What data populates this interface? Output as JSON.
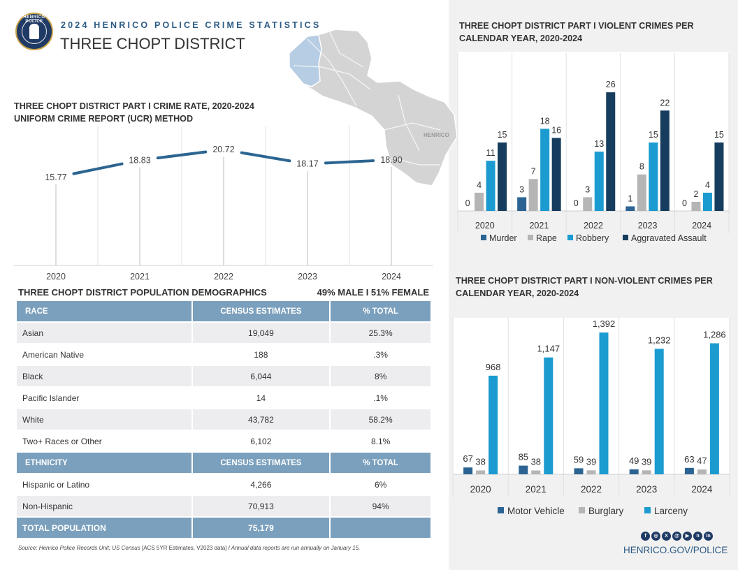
{
  "header": {
    "kicker": "2024 HENRICO POLICE CRIME STATISTICS",
    "title": "THREE CHOPT DISTRICT",
    "seal_text": "HENRICO POLICE"
  },
  "colors": {
    "navy": "#1f3a64",
    "murder": "#2b6493",
    "rape": "#b5b5b5",
    "robbery": "#1b9bd0",
    "aggravated": "#163c5e",
    "line": "#2c6591",
    "table_header": "#7ba0bd"
  },
  "crime_rate": {
    "title_line1": "THREE CHOPT DISTRICT PART I CRIME RATE, 2020-2024",
    "title_line2": "UNIFORM CRIME REPORT (UCR) METHOD"
  },
  "violent": {
    "title_line1": "THREE CHOPT DISTRICT PART I VIOLENT CRIMES PER",
    "title_line2": "CALENDAR YEAR, 2020-2024"
  },
  "nonviolent": {
    "title_line1": "THREE CHOPT DISTRICT PART I NON-VIOLENT CRIMES PER",
    "title_line2": "CALENDAR YEAR, 2020-2024"
  },
  "chart_data": [
    {
      "type": "line",
      "title": "THREE CHOPT DISTRICT PART I CRIME RATE, 2020-2024",
      "subtitle": "UNIFORM CRIME REPORT (UCR) METHOD",
      "categories": [
        "2020",
        "2021",
        "2022",
        "2023",
        "2024"
      ],
      "values": [
        15.77,
        18.83,
        20.72,
        18.17,
        18.9
      ],
      "labels": [
        "15.77",
        "18.83",
        "20.72",
        "18.17",
        "18.90"
      ],
      "ylim": [
        0,
        30
      ]
    },
    {
      "type": "bar",
      "title": "THREE CHOPT DISTRICT PART I VIOLENT CRIMES PER CALENDAR YEAR, 2020-2024",
      "categories": [
        "2020",
        "2021",
        "2022",
        "2023",
        "2024"
      ],
      "series": [
        {
          "name": "Murder",
          "values": [
            0,
            3,
            0,
            1,
            0
          ]
        },
        {
          "name": "Rape",
          "values": [
            4,
            7,
            3,
            8,
            2
          ]
        },
        {
          "name": "Robbery",
          "values": [
            11,
            18,
            13,
            15,
            4
          ]
        },
        {
          "name": "Aggravated Assault",
          "values": [
            15,
            16,
            26,
            22,
            15
          ]
        }
      ],
      "ylim": [
        0,
        30
      ],
      "legend": "bottom"
    },
    {
      "type": "bar",
      "title": "THREE CHOPT DISTRICT PART I NON-VIOLENT CRIMES PER CALENDAR YEAR, 2020-2024",
      "categories": [
        "2020",
        "2021",
        "2022",
        "2023",
        "2024"
      ],
      "series": [
        {
          "name": "Motor Vehicle",
          "values": [
            67,
            85,
            59,
            49,
            63
          ]
        },
        {
          "name": "Burglary",
          "values": [
            38,
            38,
            39,
            39,
            47
          ]
        },
        {
          "name": "Larceny",
          "values": [
            968,
            1147,
            1392,
            1232,
            1286
          ]
        }
      ],
      "labels": {
        "Motor Vehicle": [
          "67",
          "85",
          "59",
          "49",
          "63"
        ],
        "Burglary": [
          "38",
          "38",
          "39",
          "39",
          "47"
        ],
        "Larceny": [
          "968",
          "1,147",
          "1,392",
          "1,232",
          "1,286"
        ]
      },
      "ylim": [
        0,
        1500
      ],
      "legend": "bottom"
    }
  ],
  "demographics": {
    "title": "THREE CHOPT DISTRICT POPULATION DEMOGRAPHICS",
    "gender": "49% MALE  I  51% FEMALE",
    "race_header": {
      "c1": "RACE",
      "c2": "CENSUS ESTIMATES",
      "c3": "% TOTAL"
    },
    "race_rows": [
      {
        "label": "Asian",
        "estimate": "19,049",
        "pct": "25.3%"
      },
      {
        "label": "American Native",
        "estimate": "188",
        "pct": ".3%"
      },
      {
        "label": "Black",
        "estimate": "6,044",
        "pct": "8%"
      },
      {
        "label": "Pacific Islander",
        "estimate": "14",
        "pct": ".1%"
      },
      {
        "label": "White",
        "estimate": "43,782",
        "pct": "58.2%"
      },
      {
        "label": "Two+ Races or Other",
        "estimate": "6,102",
        "pct": "8.1%"
      }
    ],
    "eth_header": {
      "c1": "ETHNICITY",
      "c2": "CENSUS ESTIMATES",
      "c3": "% TOTAL"
    },
    "eth_rows": [
      {
        "label": "Hispanic or Latino",
        "estimate": "4,266",
        "pct": "6%"
      },
      {
        "label": "Non-Hispanic",
        "estimate": "70,913",
        "pct": "94%"
      }
    ],
    "total": {
      "label": "TOTAL POPULATION",
      "estimate": "75,179",
      "pct": ""
    }
  },
  "map": {
    "label": "HENRICO"
  },
  "footer": {
    "source_pre": "Source: Henrico Police Records Unit; US Census ",
    "source_mid": "[ACS 5YR Estimates, V2023 data]",
    "source_post": " I Annual data reports are run annually on January 15.",
    "social_icons": [
      "facebook-icon",
      "instagram-icon",
      "x-icon",
      "threads-icon",
      "youtube-icon",
      "nextdoor-icon",
      "linkedin-icon"
    ],
    "website": "HENRICO.GOV/POLICE"
  }
}
